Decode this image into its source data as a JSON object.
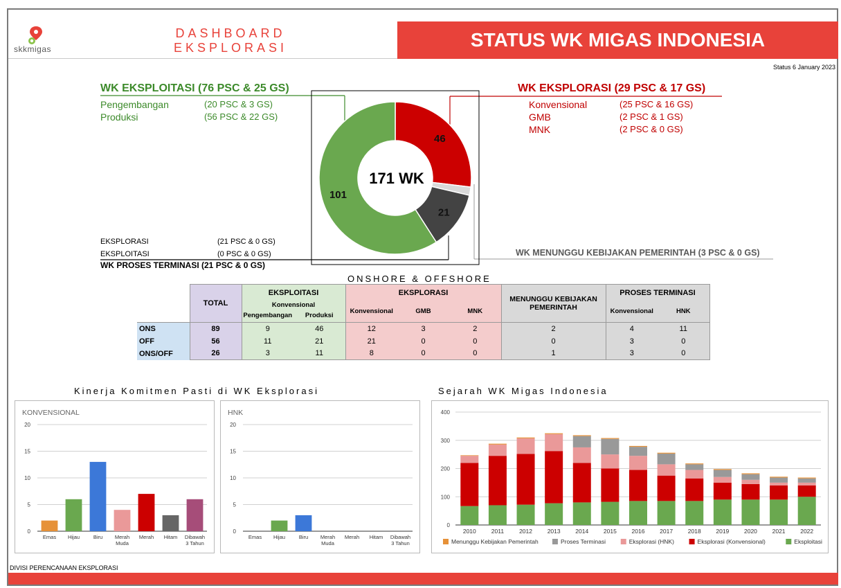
{
  "header": {
    "logo_text": "skkmigas",
    "dash_line1": "DASHBOARD",
    "dash_line2": "EKSPLORASI",
    "main_title": "STATUS WK MIGAS INDONESIA",
    "status_date": "Status 6 January 2023"
  },
  "colors": {
    "accent": "#e8423a",
    "green": "#6aa84f",
    "red": "#cc0000",
    "dark": "#434343",
    "light_gray": "#d9d9d9"
  },
  "eksploitasi": {
    "title": "WK EKSPLOITASI (76 PSC & 25 GS)",
    "rows": [
      {
        "label": "Pengembangan",
        "value": "(20 PSC & 3 GS)"
      },
      {
        "label": "Produksi",
        "value": "(56 PSC & 22 GS)"
      }
    ]
  },
  "eksplorasi": {
    "title": "WK EKSPLORASI (29 PSC & 17 GS)",
    "rows": [
      {
        "label": "Konvensional",
        "value": "(25 PSC & 16 GS)"
      },
      {
        "label": "GMB",
        "value": "(2 PSC & 1 GS)"
      },
      {
        "label": "MNK",
        "value": "(2 PSC & 0 GS)"
      }
    ]
  },
  "terminasi": {
    "rows": [
      {
        "label": "EKSPLORASI",
        "value": "(21 PSC & 0 GS)"
      },
      {
        "label": "EKSPLOITASI",
        "value": "(0 PSC & 0 GS)"
      }
    ],
    "title": "WK PROSES TERMINASI (21 PSC & 0 GS)"
  },
  "menunggu": {
    "title": "WK MENUNGGU KEBIJAKAN PEMERINTAH (3 PSC & 0 GS)"
  },
  "table": {
    "title": "ONSHORE & OFFSHORE",
    "total_label": "TOTAL",
    "eksploitasi_label": "EKSPLOITASI",
    "konvensional_label": "Konvensional",
    "pengembangan_label": "Pengembangan",
    "produksi_label": "Produksi",
    "eksplorasi_label": "EKSPLORASI",
    "eks_konv_label": "Konvensional",
    "gmb_label": "GMB",
    "mnk_label": "MNK",
    "menunggu_label": "MENUNGGU KEBIJAKAN PEMERINTAH",
    "terminasi_label": "PROSES TERMINASI",
    "term_konv_label": "Konvensional",
    "hnk_label": "HNK",
    "rows": [
      {
        "name": "ONS",
        "cells": [
          "89",
          "9",
          "46",
          "12",
          "3",
          "2",
          "2",
          "4",
          "11"
        ]
      },
      {
        "name": "OFF",
        "cells": [
          "56",
          "11",
          "21",
          "21",
          "0",
          "0",
          "0",
          "3",
          "0"
        ]
      },
      {
        "name": "ONS/OFF",
        "cells": [
          "26",
          "3",
          "11",
          "8",
          "0",
          "0",
          "1",
          "3",
          "0"
        ]
      }
    ]
  },
  "kinerja_title": "Kinerja Komitmen Pasti di WK Eksplorasi",
  "sejarah_title": "Sejarah WK Migas Indonesia",
  "footer": {
    "text": "DIVISI PERENCANAAN EKSPLORASI"
  },
  "chart_data": [
    {
      "type": "pie",
      "center_label": "171 WK",
      "values": [
        46,
        3,
        21,
        101
      ],
      "labels": [
        "46",
        "",
        "21",
        "101"
      ],
      "colors": [
        "#cc0000",
        "#d9d9d9",
        "#434343",
        "#6aa84f"
      ]
    },
    {
      "type": "bar",
      "title": "KONVENSIONAL",
      "categories": [
        "Emas",
        "Hijau",
        "Biru",
        "Merah Muda",
        "Merah",
        "Hitam",
        "Dibawah 3 Tahun"
      ],
      "values": [
        2,
        6,
        13,
        4,
        7,
        3,
        6
      ],
      "colors": [
        "#e69138",
        "#6aa84f",
        "#3c78d8",
        "#ea9999",
        "#cc0000",
        "#666666",
        "#a64d79"
      ],
      "ylim": [
        0,
        20
      ],
      "yticks": [
        0,
        5,
        10,
        15,
        20
      ]
    },
    {
      "type": "bar",
      "title": "HNK",
      "categories": [
        "Emas",
        "Hijau",
        "Biru",
        "Merah Muda",
        "Merah",
        "Hitam",
        "Dibawah 3 Tahun"
      ],
      "values": [
        0,
        2,
        3,
        0,
        0,
        0,
        0
      ],
      "colors": [
        "#e69138",
        "#6aa84f",
        "#3c78d8",
        "#ea9999",
        "#cc0000",
        "#666666",
        "#a64d79"
      ],
      "ylim": [
        0,
        20
      ],
      "yticks": [
        0,
        5,
        10,
        15,
        20
      ]
    },
    {
      "type": "bar",
      "stacked": true,
      "categories": [
        "2010",
        "2011",
        "2012",
        "2013",
        "2014",
        "2015",
        "2016",
        "2017",
        "2018",
        "2019",
        "2020",
        "2021",
        "2022"
      ],
      "ylim": [
        0,
        400
      ],
      "yticks": [
        0,
        100,
        200,
        300,
        400
      ],
      "legend": "bottom",
      "series": [
        {
          "name": "Eksploitasi",
          "color": "#6aa84f",
          "values": [
            67,
            70,
            72,
            77,
            80,
            82,
            85,
            85,
            85,
            90,
            90,
            90,
            100
          ]
        },
        {
          "name": "Eksplorasi (Konvensional)",
          "color": "#cc0000",
          "values": [
            153,
            175,
            180,
            185,
            140,
            118,
            110,
            90,
            80,
            60,
            55,
            50,
            40
          ]
        },
        {
          "name": "Eksplorasi (HNK)",
          "color": "#ea9999",
          "values": [
            25,
            40,
            55,
            60,
            55,
            50,
            50,
            40,
            30,
            20,
            15,
            10,
            10
          ]
        },
        {
          "name": "Proses Terminasi",
          "color": "#999999",
          "values": [
            0,
            0,
            0,
            0,
            40,
            55,
            32,
            38,
            20,
            25,
            20,
            18,
            15
          ]
        },
        {
          "name": "Menunggu Kebijakan Pemerintah",
          "color": "#e69138",
          "values": [
            2,
            3,
            3,
            3,
            3,
            3,
            3,
            3,
            3,
            3,
            3,
            3,
            3
          ]
        }
      ],
      "legend_order": [
        "Menunggu Kebijakan Pemerintah",
        "Proses Terminasi",
        "Eksplorasi (HNK)",
        "Eksplorasi (Konvensional)",
        "Eksploitasi"
      ]
    }
  ]
}
